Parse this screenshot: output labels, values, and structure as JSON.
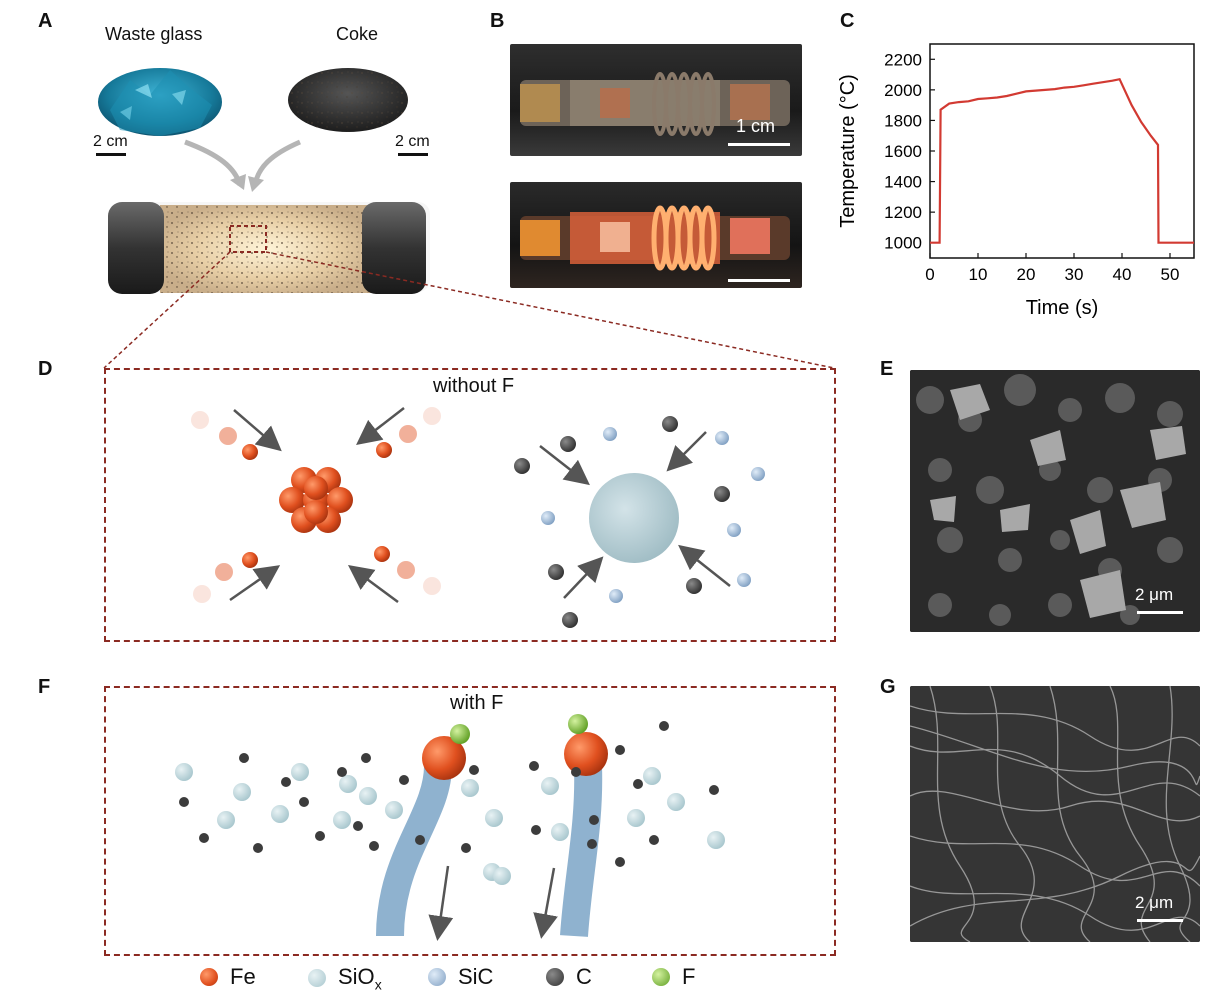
{
  "panels": {
    "a": "A",
    "b": "B",
    "c": "C",
    "d": "D",
    "e": "E",
    "f": "F",
    "g": "G"
  },
  "panel_a": {
    "waste_glass_label": "Waste glass",
    "coke_label": "Coke",
    "scale_left": "2 cm",
    "scale_right": "2 cm"
  },
  "panel_b": {
    "scale_label": "1 cm"
  },
  "panel_d": {
    "title": "without F"
  },
  "panel_e": {
    "scale_label": "2 μm"
  },
  "panel_f": {
    "title": "with F"
  },
  "panel_g": {
    "scale_label": "2 μm"
  },
  "legend": {
    "fe": "Fe",
    "siox_base": "SiO",
    "siox_sub": "x",
    "sic": "SiC",
    "c": "C",
    "f": "F"
  },
  "colors": {
    "fe": "#e0501f",
    "siox": "#b9d3d9",
    "sic": "#9fbbd8",
    "c": "#4b4b4b",
    "f": "#7ec23a",
    "dashed": "#8b2a22",
    "curve": "#d23a32"
  },
  "chart_data": {
    "type": "line",
    "xlabel": "Time (s)",
    "ylabel": "Temperature (°C)",
    "xlim": [
      0,
      55
    ],
    "ylim": [
      900,
      2300
    ],
    "x_ticks": [
      0,
      10,
      20,
      30,
      40,
      50
    ],
    "y_ticks": [
      1000,
      1200,
      1400,
      1600,
      1800,
      2000,
      2200
    ],
    "series": [
      {
        "x": [
          0,
          2,
          2.2,
          4,
          6,
          8,
          10,
          12,
          14,
          16,
          18,
          20,
          22,
          24,
          26,
          28,
          30,
          32,
          34,
          36,
          38,
          39.5,
          42,
          44,
          46,
          47.5,
          47.6,
          55
        ],
        "y": [
          1000,
          1000,
          1870,
          1910,
          1920,
          1925,
          1940,
          1945,
          1950,
          1960,
          1975,
          1990,
          1995,
          2000,
          2005,
          2015,
          2020,
          2030,
          2040,
          2050,
          2060,
          2070,
          1900,
          1790,
          1700,
          1640,
          1000,
          1000
        ]
      }
    ]
  }
}
